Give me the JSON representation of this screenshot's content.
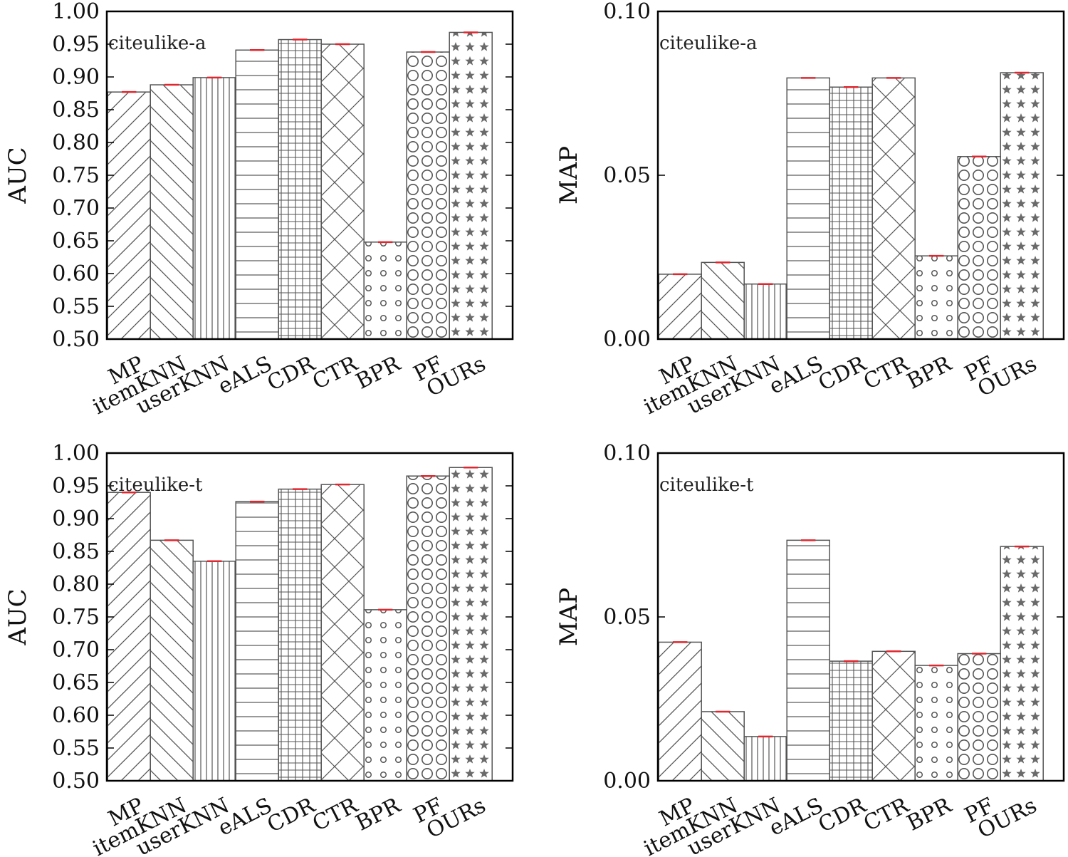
{
  "chart_data": [
    {
      "type": "bar",
      "title": "citeulike-a",
      "xlabel": "",
      "ylabel": "AUC",
      "ylim": [
        0.5,
        1.0
      ],
      "yticks": [
        "0.50",
        "0.55",
        "0.60",
        "0.65",
        "0.70",
        "0.75",
        "0.80",
        "0.85",
        "0.90",
        "0.95",
        "1.00"
      ],
      "categories": [
        "MP",
        "itemKNN",
        "userKNN",
        "eALS",
        "CDR",
        "CTR",
        "BPR",
        "PF",
        "OURs"
      ],
      "values": [
        0.877,
        0.888,
        0.899,
        0.941,
        0.957,
        0.95,
        0.648,
        0.938,
        0.968
      ]
    },
    {
      "type": "bar",
      "title": "citeulike-a",
      "xlabel": "",
      "ylabel": "MAP",
      "ylim": [
        0.0,
        0.1
      ],
      "yticks": [
        "0.00",
        "0.05",
        "0.10"
      ],
      "categories": [
        "MP",
        "itemKNN",
        "userKNN",
        "eALS",
        "CDR",
        "CTR",
        "BPR",
        "PF",
        "OURs"
      ],
      "values": [
        0.0198,
        0.0234,
        0.0168,
        0.0797,
        0.0769,
        0.0797,
        0.0254,
        0.0557,
        0.0813
      ]
    },
    {
      "type": "bar",
      "title": "citeulike-t",
      "xlabel": "",
      "ylabel": "AUC",
      "ylim": [
        0.5,
        1.0
      ],
      "yticks": [
        "0.50",
        "0.55",
        "0.60",
        "0.65",
        "0.70",
        "0.75",
        "0.80",
        "0.85",
        "0.90",
        "0.95",
        "1.00"
      ],
      "categories": [
        "MP",
        "itemKNN",
        "userKNN",
        "eALS",
        "CDR",
        "CTR",
        "BPR",
        "PF",
        "OURs"
      ],
      "values": [
        0.94,
        0.867,
        0.835,
        0.926,
        0.945,
        0.952,
        0.761,
        0.965,
        0.978
      ]
    },
    {
      "type": "bar",
      "title": "citeulike-t",
      "xlabel": "",
      "ylabel": "MAP",
      "ylim": [
        0.0,
        0.1
      ],
      "yticks": [
        "0.00",
        "0.05",
        "0.10"
      ],
      "categories": [
        "MP",
        "itemKNN",
        "userKNN",
        "eALS",
        "CDR",
        "CTR",
        "BPR",
        "PF",
        "OURs"
      ],
      "values": [
        0.0423,
        0.0211,
        0.0135,
        0.0734,
        0.0365,
        0.0395,
        0.0352,
        0.0388,
        0.0715
      ]
    }
  ]
}
